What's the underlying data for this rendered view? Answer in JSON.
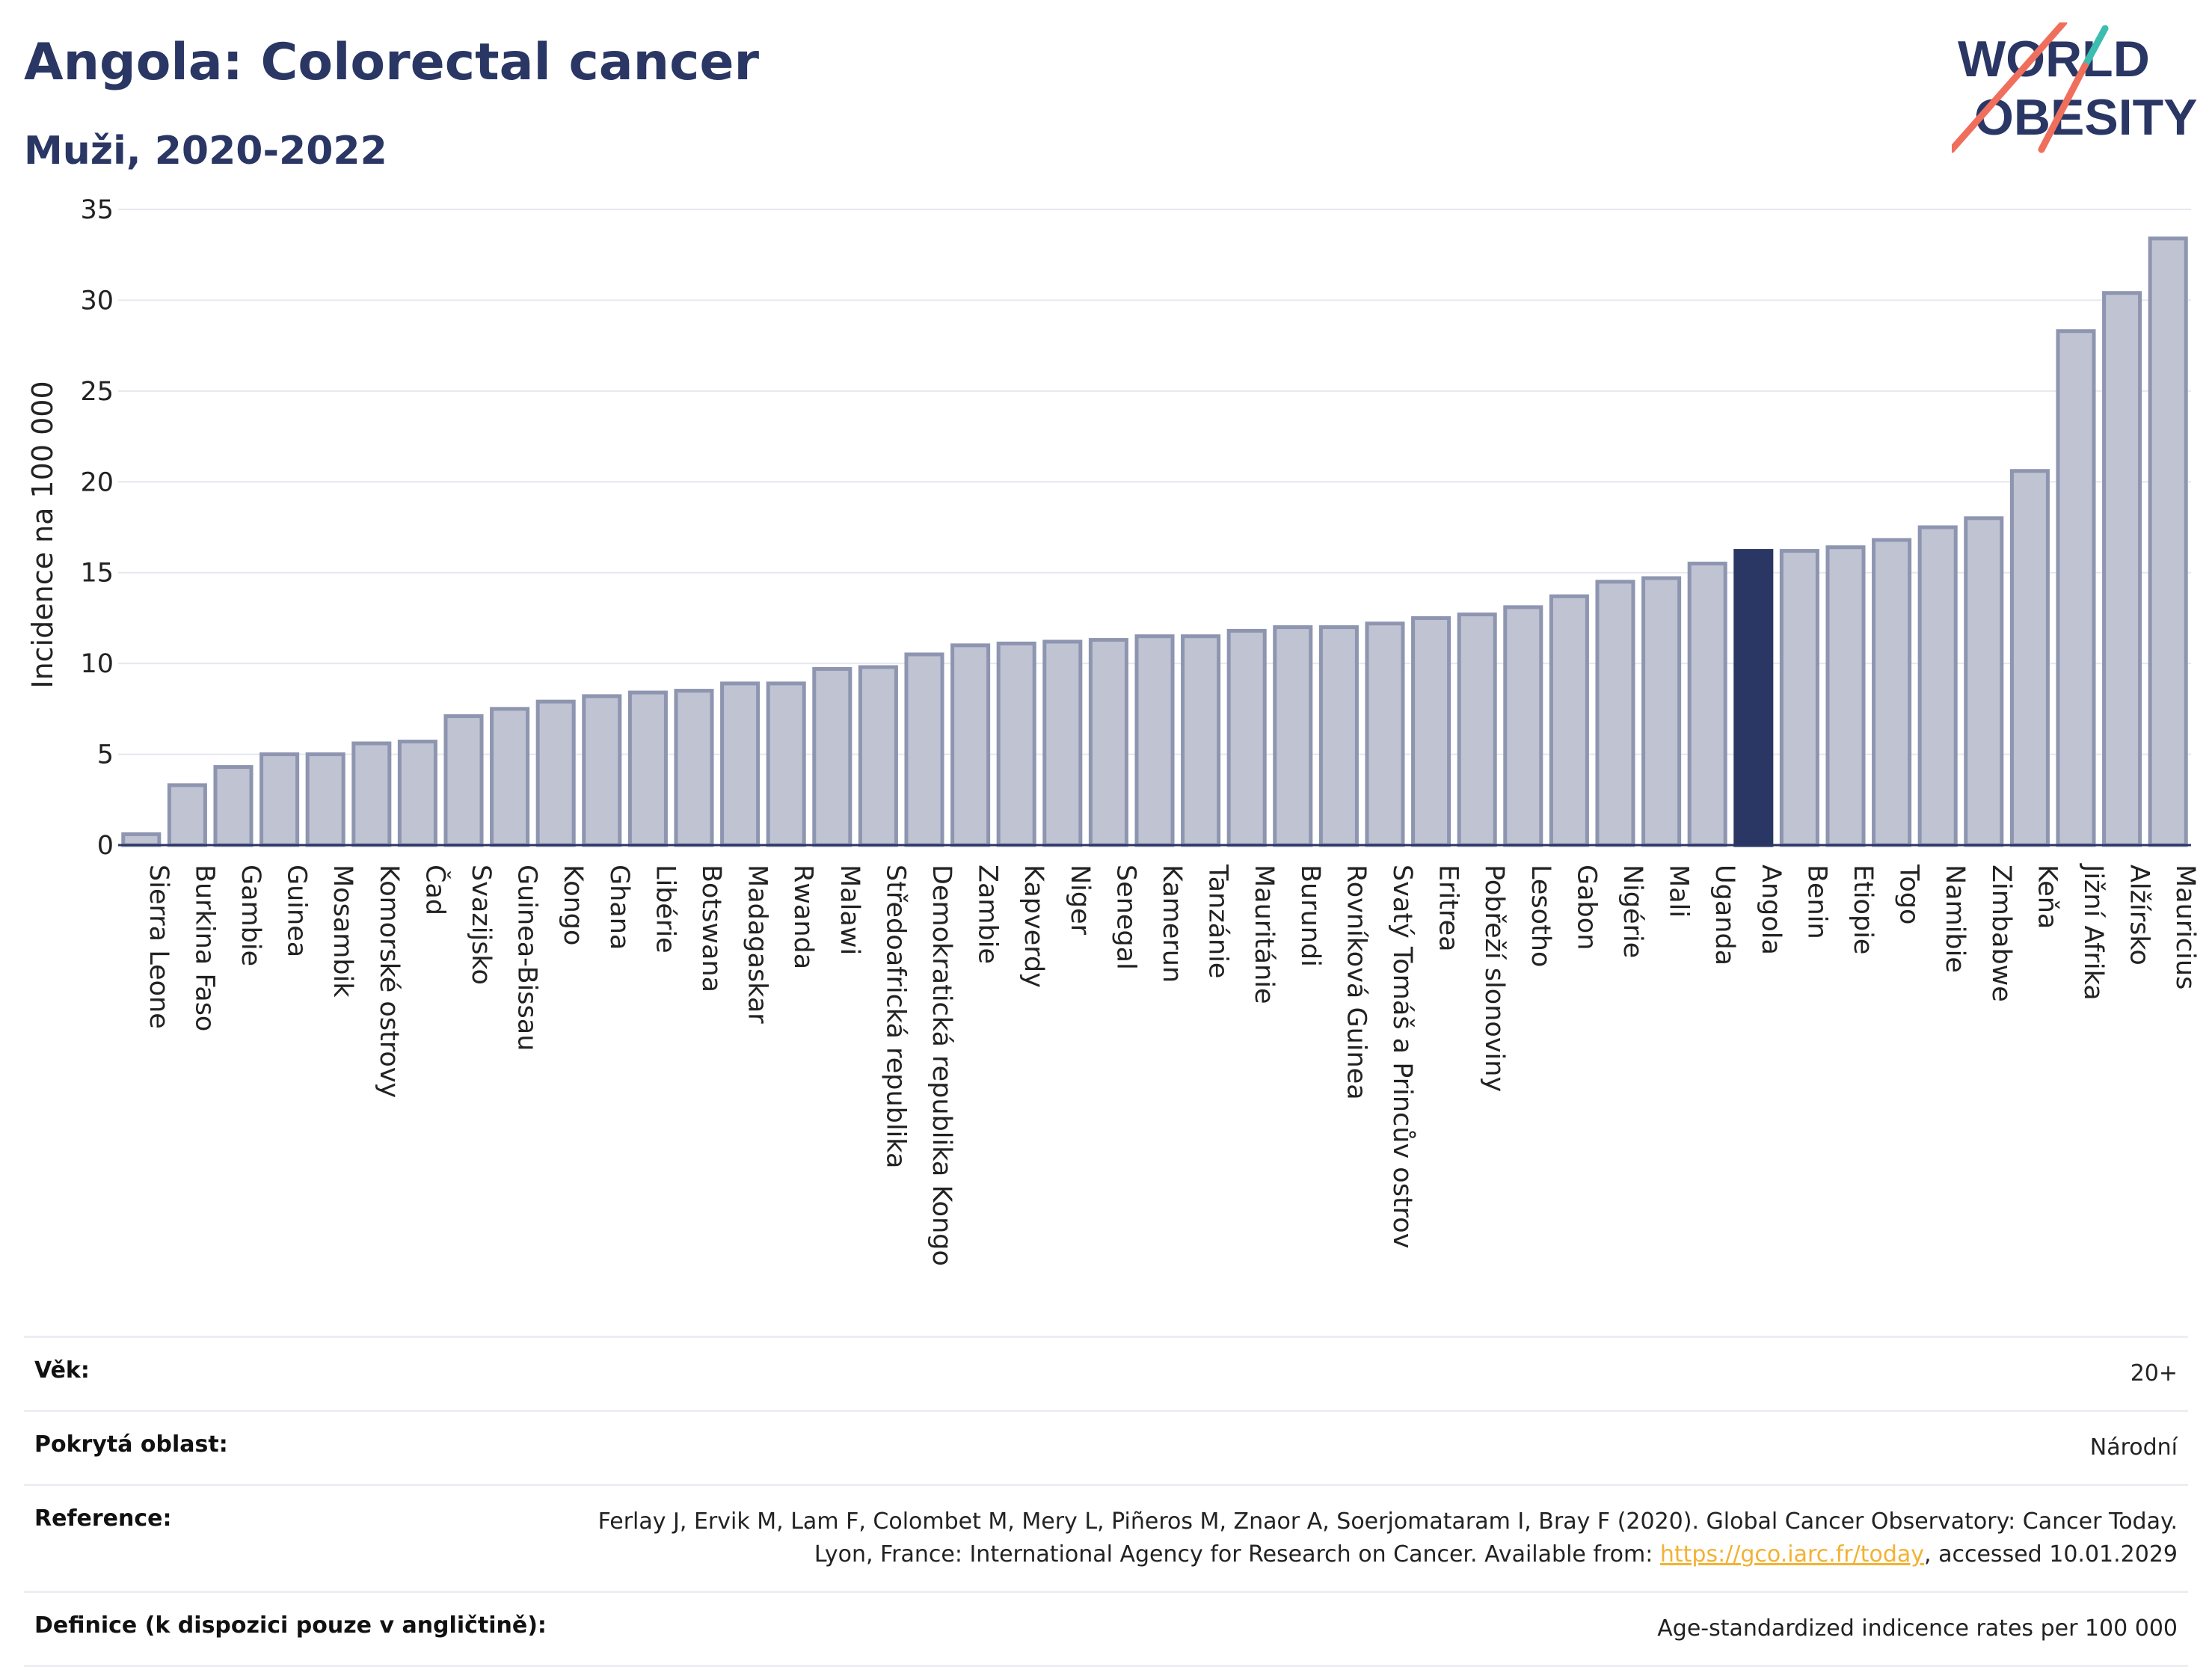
{
  "header": {
    "title": "Angola: Colorectal cancer",
    "subtitle": "Muži, 2020-2022"
  },
  "logo": {
    "line1": "WORLD",
    "line2": "OBESITY",
    "colors": {
      "text": "#2a3663",
      "teal": "#3bbdb0",
      "coral": "#ef6f5c"
    }
  },
  "chart_data": {
    "type": "bar",
    "title": "Angola: Colorectal cancer",
    "subtitle": "Muži, 2020-2022",
    "ylabel": "Incidence na 100 000",
    "xlabel": "",
    "ylim": [
      0,
      35
    ],
    "yticks": [
      0,
      5,
      10,
      15,
      20,
      25,
      30,
      35
    ],
    "grid": true,
    "highlight": "Angola",
    "colors": {
      "bar": "#bfc3d2",
      "bar_border": "#8e95b0",
      "highlight": "#2a3663"
    },
    "categories": [
      "Sierra Leone",
      "Burkina Faso",
      "Gambie",
      "Guinea",
      "Mosambik",
      "Komorské ostrovy",
      "Čad",
      "Svazijsko",
      "Guinea-Bissau",
      "Kongo",
      "Ghana",
      "Libérie",
      "Botswana",
      "Madagaskar",
      "Rwanda",
      "Malawi",
      "Středoafrická republika",
      "Demokratická republika Kongo",
      "Zambie",
      "Kapverdy",
      "Niger",
      "Senegal",
      "Kamerun",
      "Tanzánie",
      "Mauritánie",
      "Burundi",
      "Rovníková Guinea",
      "Svatý Tomáš a Princův ostrov",
      "Eritrea",
      "Pobřeží slonoviny",
      "Lesotho",
      "Gabon",
      "Nigérie",
      "Mali",
      "Uganda",
      "Angola",
      "Benin",
      "Etiopie",
      "Togo",
      "Namibie",
      "Zimbabwe",
      "Keňa",
      "Jižní Afrika",
      "Alžírsko",
      "Mauricius"
    ],
    "values": [
      0.6,
      3.3,
      4.3,
      5.0,
      5.0,
      5.6,
      5.7,
      7.1,
      7.5,
      7.9,
      8.2,
      8.4,
      8.5,
      8.9,
      8.9,
      9.7,
      9.8,
      10.5,
      11.0,
      11.1,
      11.2,
      11.3,
      11.5,
      11.5,
      11.8,
      12.0,
      12.0,
      12.2,
      12.5,
      12.7,
      13.1,
      13.7,
      14.5,
      14.7,
      15.5,
      16.2,
      16.2,
      16.4,
      16.8,
      17.5,
      18.0,
      20.6,
      28.3,
      30.4,
      33.4
    ]
  },
  "meta": {
    "rows": [
      {
        "label": "Věk:",
        "value": "20+"
      },
      {
        "label": "Pokrytá oblast:",
        "value": "Národní"
      },
      {
        "label": "Reference:",
        "value_before": "Ferlay J, Ervik M, Lam F, Colombet M, Mery L, Piñeros M, Znaor A, Soerjomataram I, Bray F (2020). Global Cancer Observatory: Cancer Today. Lyon, France: International Agency for Research on Cancer. Available from: ",
        "link": "https://gco.iarc.fr/today",
        "value_after": ", accessed 10.01.2029"
      },
      {
        "label": "Definice (k dispozici pouze v angličtině):",
        "value": "Age-standardized indicence rates per 100 000"
      }
    ]
  }
}
